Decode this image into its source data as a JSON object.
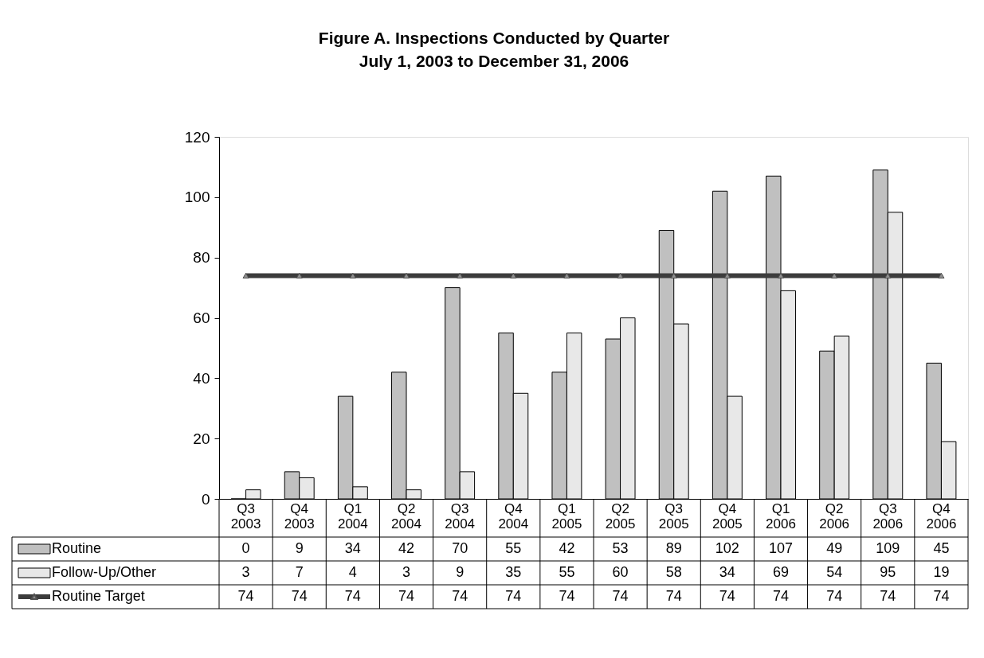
{
  "chart_data": {
    "type": "bar",
    "title": "Figure A.  Inspections Conducted by Quarter",
    "subtitle": "July 1, 2003 to December 31, 2006",
    "categories": [
      "Q3 2003",
      "Q4 2003",
      "Q1 2004",
      "Q2 2004",
      "Q3 2004",
      "Q4 2004",
      "Q1 2005",
      "Q2 2005",
      "Q3 2005",
      "Q4 2005",
      "Q1 2006",
      "Q2 2006",
      "Q3 2006",
      "Q4 2006"
    ],
    "series": [
      {
        "name": "Routine",
        "color": "#c0c0c0",
        "values": [
          0,
          9,
          34,
          42,
          70,
          55,
          42,
          53,
          89,
          102,
          107,
          49,
          109,
          45
        ]
      },
      {
        "name": "Follow-Up/Other",
        "color": "#e8e8e8",
        "values": [
          3,
          7,
          4,
          3,
          9,
          35,
          55,
          60,
          58,
          34,
          69,
          54,
          95,
          19
        ]
      },
      {
        "name": "Routine Target",
        "type": "line",
        "color": "#3c3c3c",
        "marker": "triangle",
        "values": [
          74,
          74,
          74,
          74,
          74,
          74,
          74,
          74,
          74,
          74,
          74,
          74,
          74,
          74
        ]
      }
    ],
    "ylim": [
      0,
      120
    ],
    "yticks": [
      0,
      20,
      40,
      60,
      80,
      100,
      120
    ],
    "grid": false,
    "legend": "bottom",
    "data_labels": true
  }
}
